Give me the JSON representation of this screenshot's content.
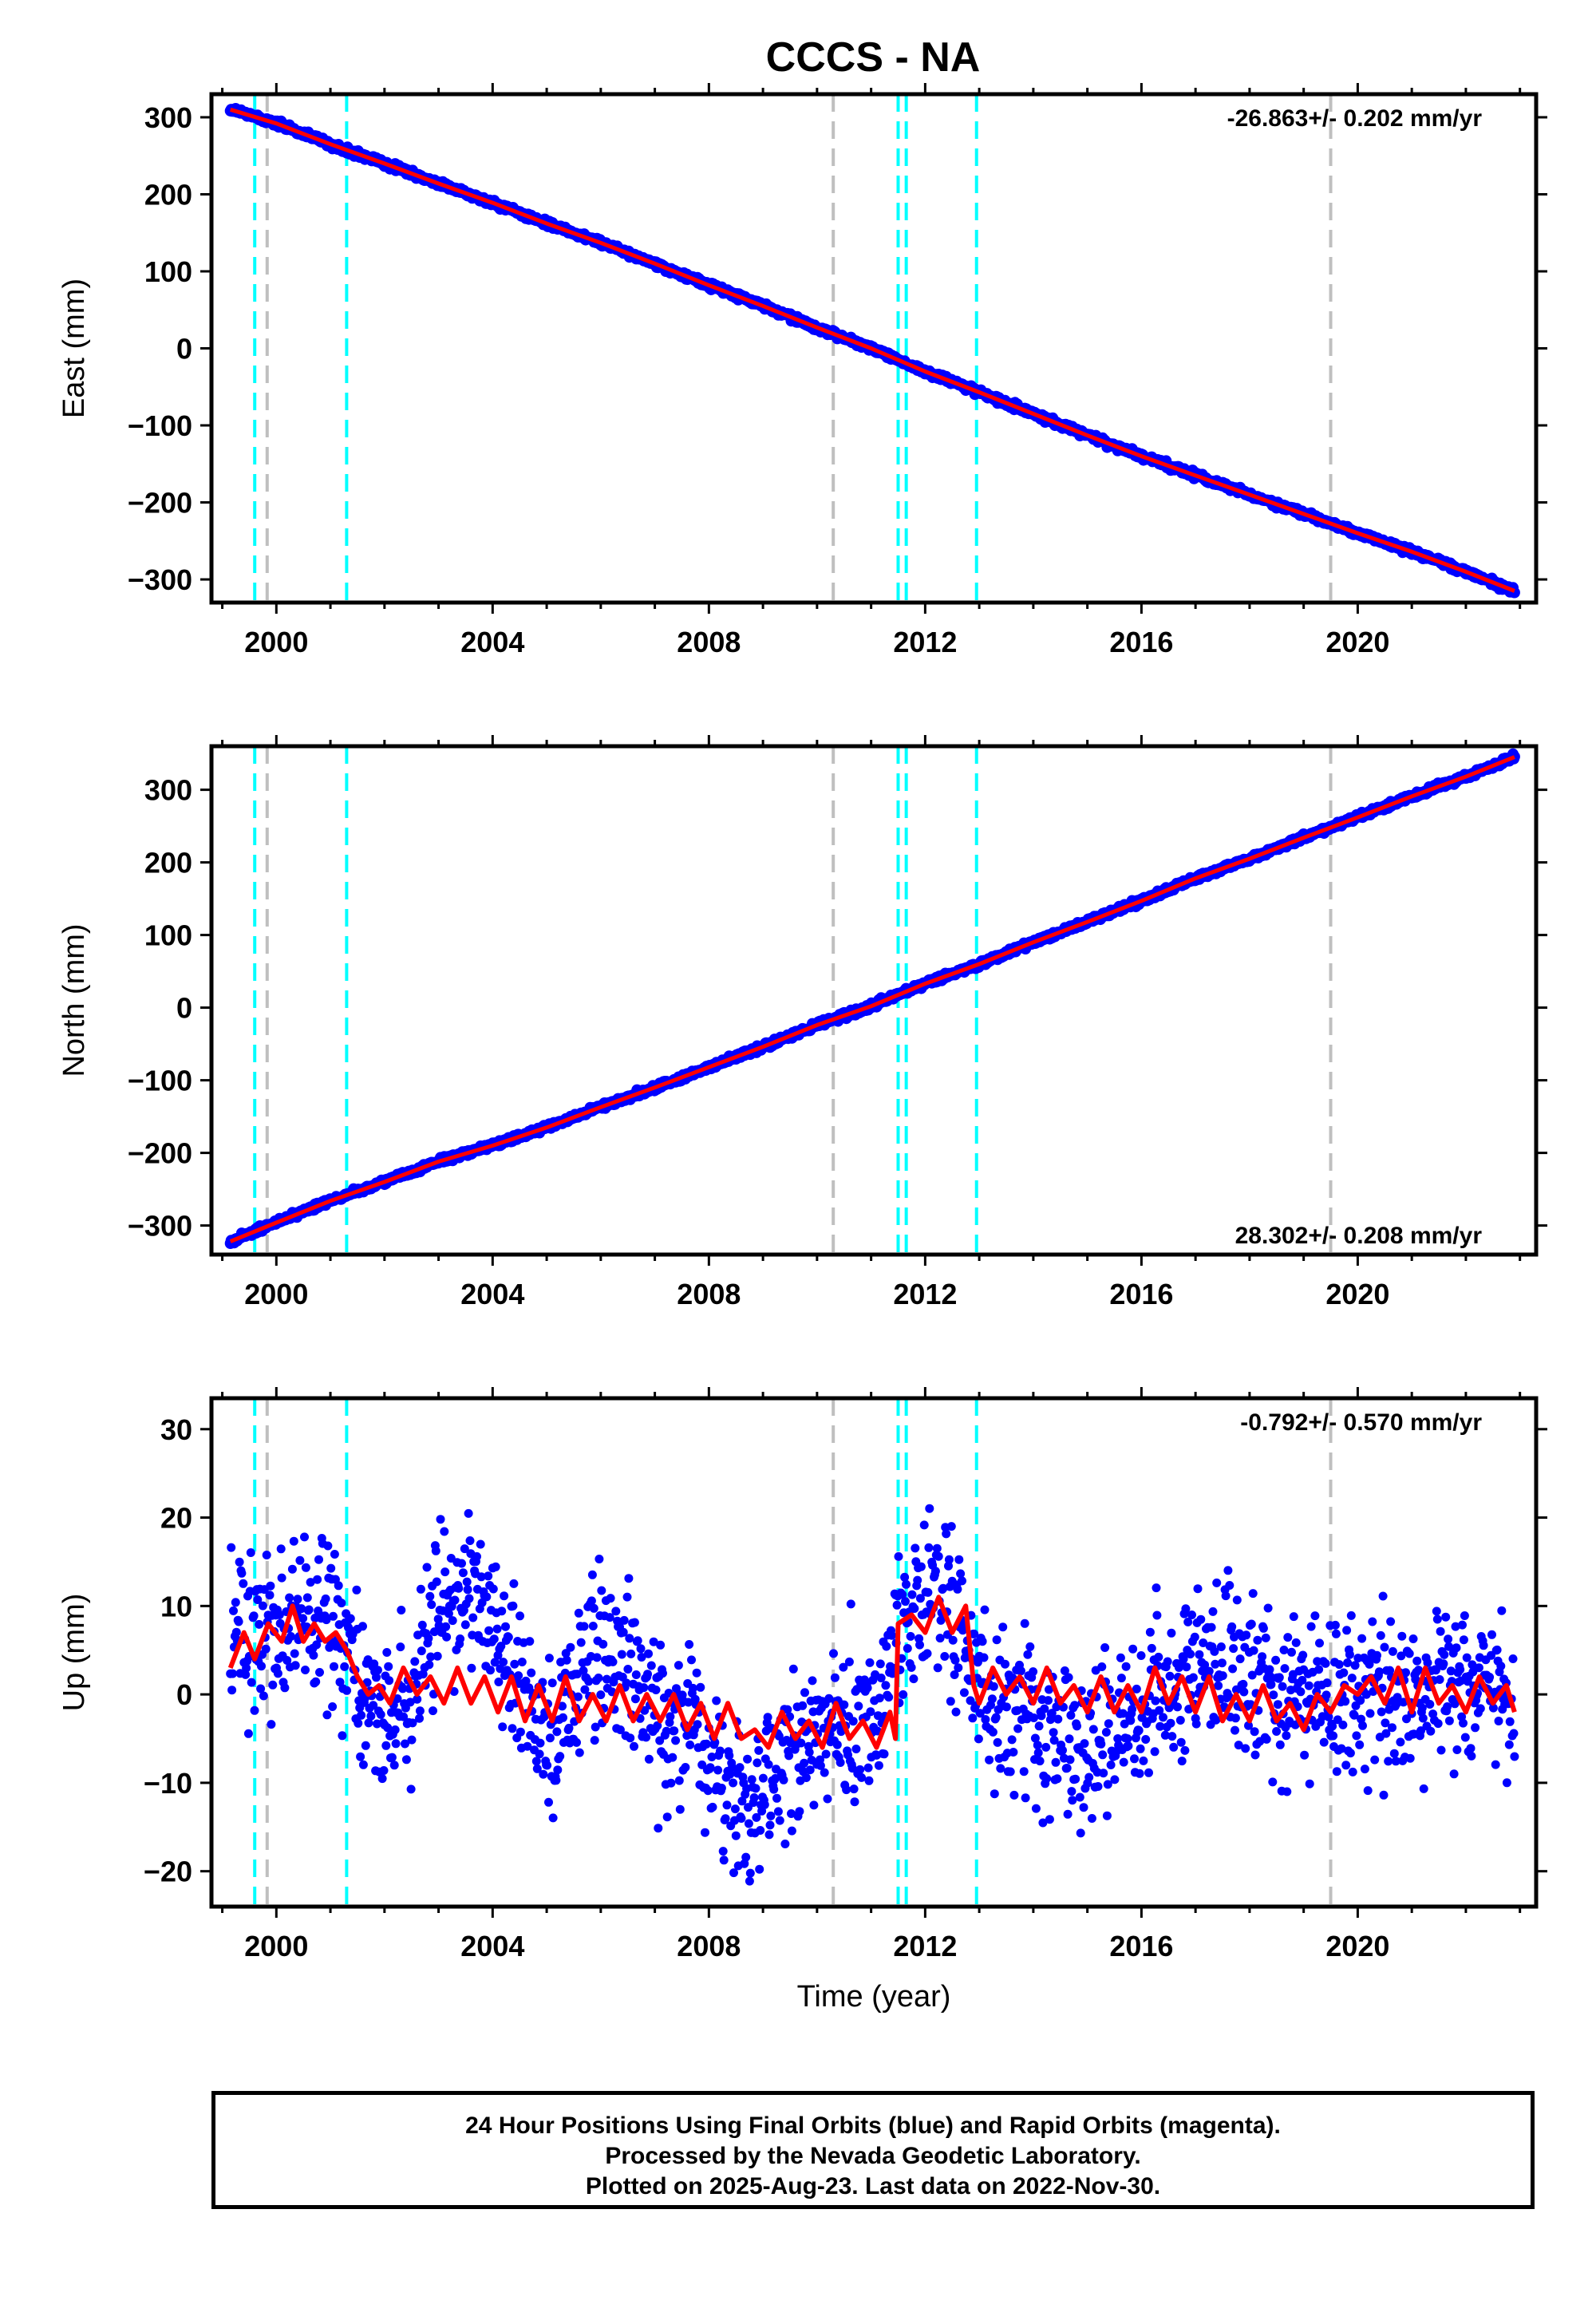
{
  "title": "CCCS - NA",
  "footer": {
    "line1": "24 Hour Positions Using Final Orbits (blue) and Rapid Orbits (magenta).",
    "line2": "Processed by the Nevada Geodetic Laboratory.",
    "line3": "Plotted on 2025-Aug-23. Last data on 2022-Nov-30."
  },
  "colors": {
    "data_points": "#0000ff",
    "model_fit": "#ff0000",
    "equipment_change_lines": "#00ffff",
    "earthquake_lines": "#bfbfbf"
  },
  "chart_data": [
    {
      "type": "scatter",
      "ylabel": "East (mm)",
      "xlabel": "",
      "xlim": [
        1998.8,
        2023.3
      ],
      "ylim": [
        -330,
        330
      ],
      "x_ticks": [
        2000,
        2004,
        2008,
        2012,
        2016,
        2020
      ],
      "y_ticks": [
        -300,
        -200,
        -100,
        0,
        100,
        200,
        300
      ],
      "y_tick_labels": [
        "−300",
        "−200",
        "−100",
        "0",
        "100",
        "200",
        "300"
      ],
      "rate_label": "-26.863+/- 0.202 mm/yr",
      "rate_label_position": "top-right",
      "series": [
        {
          "role": "data",
          "x": [
            1999.15,
            2000.0,
            2001.0,
            2002.0,
            2003.0,
            2004.0,
            2005.0,
            2006.0,
            2007.0,
            2008.0,
            2009.0,
            2010.0,
            2011.0,
            2012.0,
            2013.0,
            2014.0,
            2015.0,
            2016.0,
            2017.0,
            2018.0,
            2019.0,
            2020.0,
            2021.0,
            2022.0,
            2022.9
          ],
          "y": [
            310,
            292,
            265,
            240,
            214,
            189,
            162,
            137,
            110,
            82,
            55,
            27,
            0,
            -30,
            -57,
            -85,
            -113,
            -140,
            -165,
            -190,
            -215,
            -240,
            -264,
            -290,
            -315
          ]
        }
      ],
      "vertical_lines": [
        {
          "x": 1999.6,
          "kind": "equipment"
        },
        {
          "x": 1999.83,
          "kind": "earthquake"
        },
        {
          "x": 2001.3,
          "kind": "equipment"
        },
        {
          "x": 2010.3,
          "kind": "earthquake"
        },
        {
          "x": 2011.5,
          "kind": "equipment"
        },
        {
          "x": 2011.65,
          "kind": "equipment"
        },
        {
          "x": 2012.95,
          "kind": "equipment"
        },
        {
          "x": 2019.5,
          "kind": "earthquake"
        }
      ],
      "grid": false
    },
    {
      "type": "scatter",
      "ylabel": "North (mm)",
      "xlabel": "",
      "xlim": [
        1998.8,
        2023.3
      ],
      "ylim": [
        -340,
        360
      ],
      "x_ticks": [
        2000,
        2004,
        2008,
        2012,
        2016,
        2020
      ],
      "y_ticks": [
        -300,
        -200,
        -100,
        0,
        100,
        200,
        300
      ],
      "y_tick_labels": [
        "−300",
        "−200",
        "−100",
        "0",
        "100",
        "200",
        "300"
      ],
      "rate_label": "28.302+/- 0.208 mm/yr",
      "rate_label_position": "bottom-right",
      "series": [
        {
          "role": "data",
          "x": [
            1999.15,
            2000.0,
            2001.0,
            2002.0,
            2003.0,
            2004.0,
            2005.0,
            2006.0,
            2007.0,
            2008.0,
            2009.0,
            2010.0,
            2011.0,
            2012.0,
            2013.0,
            2014.0,
            2015.0,
            2016.0,
            2017.0,
            2018.0,
            2019.0,
            2020.0,
            2021.0,
            2022.0,
            2022.9
          ],
          "y": [
            -322,
            -296,
            -266,
            -240,
            -212,
            -190,
            -165,
            -137,
            -110,
            -82,
            -54,
            -24,
            2,
            33,
            60,
            90,
            118,
            147,
            178,
            205,
            234,
            262,
            291,
            318,
            345
          ]
        }
      ],
      "vertical_lines": [
        {
          "x": 1999.6,
          "kind": "equipment"
        },
        {
          "x": 1999.83,
          "kind": "earthquake"
        },
        {
          "x": 2001.3,
          "kind": "equipment"
        },
        {
          "x": 2010.3,
          "kind": "earthquake"
        },
        {
          "x": 2011.5,
          "kind": "equipment"
        },
        {
          "x": 2011.65,
          "kind": "equipment"
        },
        {
          "x": 2012.95,
          "kind": "equipment"
        },
        {
          "x": 2019.5,
          "kind": "earthquake"
        }
      ],
      "grid": false
    },
    {
      "type": "scatter",
      "ylabel": "Up (mm)",
      "xlabel": "Time (year)",
      "xlim": [
        1998.8,
        2023.3
      ],
      "ylim": [
        -24,
        33.5
      ],
      "x_ticks": [
        2000,
        2004,
        2008,
        2012,
        2016,
        2020
      ],
      "y_ticks": [
        -20,
        -10,
        0,
        10,
        20,
        30
      ],
      "y_tick_labels": [
        "−20",
        "−10",
        "0",
        "10",
        "20",
        "30"
      ],
      "rate_label": "-0.792+/- 0.570 mm/yr",
      "rate_label_position": "top-right",
      "series": [
        {
          "role": "model",
          "x": [
            1999.15,
            1999.4,
            1999.6,
            1999.85,
            2000.1,
            2000.3,
            2000.5,
            2000.7,
            2000.9,
            2001.1,
            2001.3,
            2001.5,
            2001.7,
            2001.9,
            2002.1,
            2002.35,
            2002.6,
            2002.85,
            2003.1,
            2003.35,
            2003.6,
            2003.85,
            2004.1,
            2004.35,
            2004.6,
            2004.85,
            2005.1,
            2005.35,
            2005.6,
            2005.85,
            2006.1,
            2006.35,
            2006.6,
            2006.85,
            2007.1,
            2007.35,
            2007.6,
            2007.85,
            2008.1,
            2008.35,
            2008.6,
            2008.85,
            2009.1,
            2009.35,
            2009.6,
            2009.85,
            2010.1,
            2010.35,
            2010.6,
            2010.85,
            2011.1,
            2011.35,
            2011.45,
            2011.5,
            2011.75,
            2012.0,
            2012.25,
            2012.5,
            2012.75,
            2012.9,
            2013.0,
            2013.25,
            2013.5,
            2013.75,
            2014.0,
            2014.25,
            2014.5,
            2014.75,
            2015.0,
            2015.25,
            2015.5,
            2015.75,
            2016.0,
            2016.25,
            2016.5,
            2016.75,
            2017.0,
            2017.25,
            2017.5,
            2017.75,
            2018.0,
            2018.25,
            2018.5,
            2018.75,
            2019.0,
            2019.25,
            2019.5,
            2019.75,
            2020.0,
            2020.25,
            2020.5,
            2020.75,
            2021.0,
            2021.25,
            2021.5,
            2021.75,
            2022.0,
            2022.25,
            2022.5,
            2022.75,
            2022.9
          ],
          "y": [
            3,
            7,
            4,
            8,
            6,
            10,
            6,
            8,
            6,
            7,
            5,
            2,
            0,
            1,
            -1,
            3,
            0,
            2,
            -1,
            3,
            -1,
            2,
            -2,
            2,
            -3,
            1,
            -3,
            2,
            -3,
            0,
            -3,
            1,
            -3,
            0,
            -3,
            0,
            -4,
            -1,
            -5,
            -1,
            -5,
            -4,
            -6,
            -2,
            -5,
            -3,
            -6,
            -1,
            -5,
            -3,
            -6,
            -2,
            -5,
            8,
            9,
            7,
            11,
            7,
            10,
            1,
            -1,
            3,
            0,
            2,
            -1,
            3,
            -1,
            1,
            -2,
            2,
            -2,
            1,
            -2,
            3,
            -1,
            2,
            -2,
            2,
            -3,
            0,
            -3,
            1,
            -3,
            -1,
            -4,
            0,
            -2,
            1,
            0,
            2,
            -1,
            3,
            -2,
            3,
            -1,
            1,
            -2,
            2,
            -1,
            1,
            -2
          ]
        },
        {
          "role": "data",
          "x": [
            1999.15,
            1999.6,
            2000.1,
            2000.6,
            2001.1,
            2001.6,
            2002.1,
            2002.6,
            2003.1,
            2003.6,
            2004.1,
            2004.6,
            2005.1,
            2005.6,
            2006.1,
            2006.6,
            2007.1,
            2007.6,
            2008.1,
            2008.6,
            2009.1,
            2009.6,
            2010.1,
            2010.6,
            2011.1,
            2011.6,
            2012.1,
            2012.6,
            2013.1,
            2013.6,
            2014.1,
            2014.6,
            2015.1,
            2015.6,
            2016.1,
            2016.6,
            2017.1,
            2017.6,
            2018.1,
            2018.6,
            2019.1,
            2019.6,
            2020.1,
            2020.6,
            2021.1,
            2021.6,
            2022.1,
            2022.6,
            2022.9
          ],
          "y": [
            5,
            6,
            7,
            10,
            8,
            0,
            -3,
            2,
            9,
            13,
            7,
            0,
            -6,
            2,
            5,
            2,
            -4,
            -2,
            -8,
            -12,
            -10,
            -5,
            -4,
            -3,
            -3,
            9,
            10,
            8,
            1,
            -2,
            -5,
            -6,
            -7,
            -5,
            0,
            2,
            4,
            3,
            2,
            0,
            -1,
            0,
            -1,
            1,
            0,
            1,
            2,
            3,
            -2
          ]
        }
      ],
      "vertical_lines": [
        {
          "x": 1999.6,
          "kind": "equipment"
        },
        {
          "x": 1999.83,
          "kind": "earthquake"
        },
        {
          "x": 2001.3,
          "kind": "equipment"
        },
        {
          "x": 2010.3,
          "kind": "earthquake"
        },
        {
          "x": 2011.5,
          "kind": "equipment"
        },
        {
          "x": 2011.65,
          "kind": "equipment"
        },
        {
          "x": 2012.95,
          "kind": "equipment"
        },
        {
          "x": 2019.5,
          "kind": "earthquake"
        }
      ],
      "grid": false
    }
  ]
}
